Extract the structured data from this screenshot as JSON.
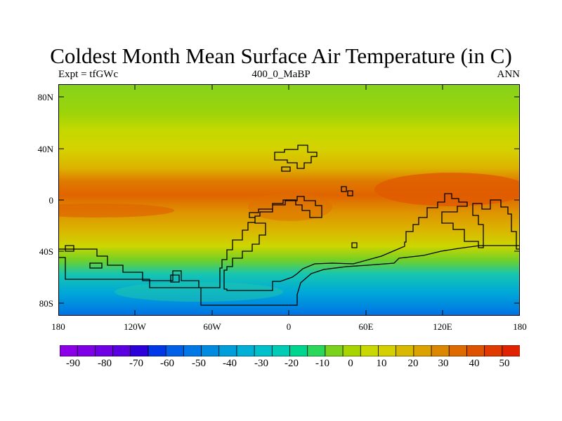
{
  "title": "Coldest Month Mean Surface Air Temperature (in C)",
  "subtitle_left": "Expt = tfGWc",
  "subtitle_center": "400_0_MaBP",
  "subtitle_right": "ANN",
  "lat_labels": [
    "80N",
    "40N",
    "0",
    "40S",
    "80S"
  ],
  "lon_labels": [
    "180",
    "120W",
    "60W",
    "0",
    "60E",
    "120E",
    "180"
  ],
  "colorbar_labels": [
    "-90",
    "-80",
    "-70",
    "-60",
    "-50",
    "-40",
    "-30",
    "-20",
    "-10",
    "0",
    "10",
    "20",
    "30",
    "40",
    "50"
  ],
  "colorbar_colors": [
    "#8c00e8",
    "#7f00e6",
    "#7000e4",
    "#5a00e0",
    "#2c00d8",
    "#0037e6",
    "#0060e8",
    "#0078e6",
    "#008be0",
    "#009edb",
    "#00b0d6",
    "#00c0cc",
    "#00ccb5",
    "#00d58f",
    "#2ad75a",
    "#7ad21c",
    "#a8d400",
    "#c9d800",
    "#d6cf00",
    "#d9b900",
    "#dba200",
    "#dc8700",
    "#de6b00",
    "#df5200",
    "#e03a00",
    "#e02300"
  ],
  "land_color": "#000000"
}
